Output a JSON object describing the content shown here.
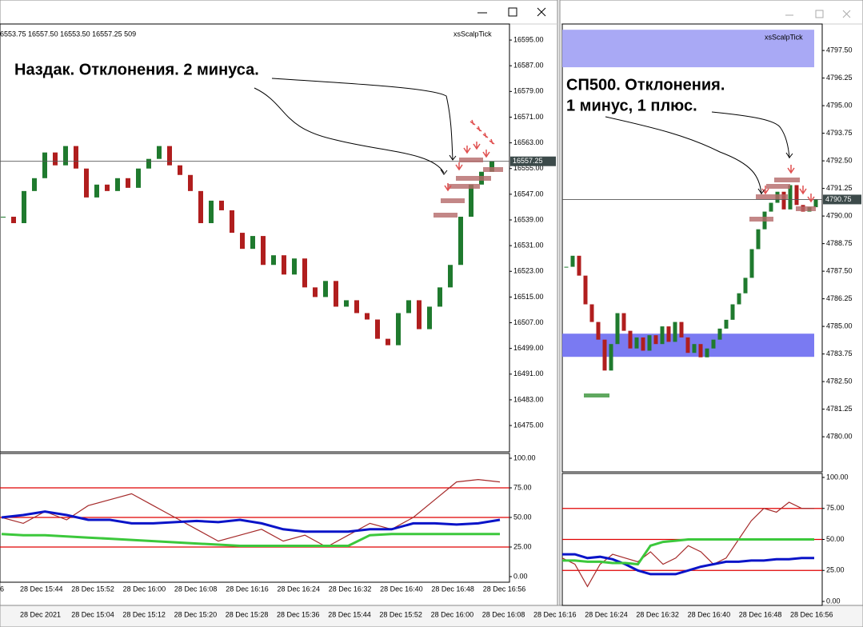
{
  "chart_data": [
    {
      "type": "candlestick",
      "info": "6553.75 16557.50 16553.50 16557.25 509",
      "indicator": "xsScalpTick",
      "annotation": [
        "Наздак. Отклонения. 2 минуса."
      ],
      "close": [
        16540,
        16538,
        16548,
        16552,
        16560,
        16556,
        16562,
        16555,
        16546,
        16550,
        16548,
        16552,
        16549,
        16555,
        16558,
        16562,
        16556,
        16553,
        16548,
        16538,
        16545,
        16542,
        16535,
        16530,
        16534,
        16525,
        16528,
        16522,
        16527,
        16518,
        16515,
        16520,
        16512,
        16514,
        16510,
        16508,
        16502,
        16500,
        16510,
        16514,
        16505,
        16512,
        16518,
        16525,
        16540,
        16550,
        16554,
        16557.25
      ],
      "up_color": "#1f7a2e",
      "down_color": "#b01e1e",
      "current_price": 16557.25,
      "ylim": [
        16466.8,
        16600
      ],
      "yticks": [
        {
          "value": 16595,
          "label": "16595.00"
        },
        {
          "value": 16587,
          "label": "16587.00"
        },
        {
          "value": 16579,
          "label": "16579.00"
        },
        {
          "value": 16571,
          "label": "16571.00"
        },
        {
          "value": 16563,
          "label": "16563.00"
        },
        {
          "value": 16555,
          "label": "16555.00"
        },
        {
          "value": 16547,
          "label": "16547.00"
        },
        {
          "value": 16539,
          "label": "16539.00"
        },
        {
          "value": 16531,
          "label": "16531.00"
        },
        {
          "value": 16523,
          "label": "16523.00"
        },
        {
          "value": 16515,
          "label": "16515.00"
        },
        {
          "value": 16507,
          "label": "16507.00"
        },
        {
          "value": 16499,
          "label": "16499.00"
        },
        {
          "value": 16491,
          "label": "16491.00"
        },
        {
          "value": 16483,
          "label": "16483.00"
        },
        {
          "value": 16475,
          "label": "16475.00"
        }
      ],
      "time_labels": [
        "6",
        "28 Dec 15:44",
        "28 Dec 15:52",
        "28 Dec 16:00",
        "28 Dec 16:08",
        "28 Dec 16:16",
        "28 Dec 16:24",
        "28 Dec 16:32",
        "28 Dec 16:40",
        "28 Dec 16:48",
        "28 Dec 16:56"
      ],
      "oscillator": {
        "ylim": [
          -4.73,
          104.05
        ],
        "yticks": [
          {
            "value": 100,
            "label": "100.00"
          },
          {
            "value": 75,
            "label": "75.00"
          },
          {
            "value": 50,
            "label": "50.00"
          },
          {
            "value": 25,
            "label": "25.00"
          },
          {
            "value": 0,
            "label": "0.00"
          }
        ],
        "levels": [
          75,
          50,
          25
        ],
        "level_color": "#e00000",
        "series": [
          {
            "color": "#a52a2a",
            "values": [
              50,
              45,
              55,
              48,
              60,
              65,
              70,
              60,
              50,
              40,
              30,
              35,
              40,
              30,
              35,
              25,
              35,
              45,
              40,
              50,
              65,
              80,
              82,
              80
            ]
          },
          {
            "color": "#0a14c8",
            "values": [
              50,
              52,
              55,
              52,
              48,
              48,
              45,
              45,
              46,
              47,
              46,
              48,
              45,
              40,
              38,
              38,
              38,
              40,
              40,
              45,
              45,
              44,
              45,
              48
            ]
          },
          {
            "color": "#3cc83c",
            "values": [
              36,
              35,
              35,
              34,
              33,
              32,
              31,
              30,
              29,
              28,
              27,
              26,
              26,
              26,
              26,
              26,
              26,
              35,
              36,
              36,
              36,
              36,
              36,
              36
            ]
          }
        ]
      }
    },
    {
      "type": "candlestick",
      "indicator": "xsScalpTick",
      "annotation": [
        "СП500. Отклонения.",
        "1 минус, 1 плюс."
      ],
      "close": [
        4787.7,
        4788.2,
        4787.3,
        4786,
        4785.2,
        4784.4,
        4783,
        4784.2,
        4785.6,
        4784.8,
        4784,
        4784.5,
        4783.9,
        4784.6,
        4784.2,
        4785,
        4784.3,
        4785.2,
        4784.5,
        4783.8,
        4784.2,
        4783.6,
        4784,
        4784.4,
        4784.9,
        4785.3,
        4786,
        4786.5,
        4787.2,
        4788.5,
        4789.4,
        4790.2,
        4790.6,
        4791.1,
        4790.3,
        4791.4,
        4790.5,
        4790.2,
        4790.4,
        4790.75
      ],
      "up_color": "#1f7a2e",
      "down_color": "#b01e1e",
      "current_price": 4790.75,
      "ylim": [
        4778.41,
        4798.7
      ],
      "yticks": [
        {
          "value": 4797.5,
          "label": "4797.50"
        },
        {
          "value": 4796.25,
          "label": "4796.25"
        },
        {
          "value": 4795,
          "label": "4795.00"
        },
        {
          "value": 4793.75,
          "label": "4793.75"
        },
        {
          "value": 4792.5,
          "label": "4792.50"
        },
        {
          "value": 4791.25,
          "label": "4791.25"
        },
        {
          "value": 4790,
          "label": "4790.00"
        },
        {
          "value": 4788.75,
          "label": "4788.75"
        },
        {
          "value": 4787.5,
          "label": "4787.50"
        },
        {
          "value": 4786.25,
          "label": "4786.25"
        },
        {
          "value": 4785,
          "label": "4785.00"
        },
        {
          "value": 4783.75,
          "label": "4783.75"
        },
        {
          "value": 4782.5,
          "label": "4782.50"
        },
        {
          "value": 4781.25,
          "label": "4781.25"
        },
        {
          "value": 4780,
          "label": "4780.00"
        }
      ],
      "zones": [
        {
          "range": [
            4796.74,
            4798.44
          ],
          "color": "#a9a9f5"
        },
        {
          "range": [
            4783.62,
            4784.67
          ],
          "color": "#7a7af2"
        }
      ],
      "oscillator": {
        "ylim": [
          -3.2,
          103.2
        ],
        "yticks": [
          {
            "value": 100,
            "label": "100.00"
          },
          {
            "value": 75,
            "label": "75.00"
          },
          {
            "value": 50,
            "label": "50.00"
          },
          {
            "value": 25,
            "label": "25.00"
          },
          {
            "value": 0,
            "label": "0.00"
          }
        ],
        "levels": [
          75,
          50,
          25
        ],
        "level_color": "#e00000",
        "series": [
          {
            "color": "#a52a2a",
            "values": [
              35,
              30,
              12,
              30,
              38,
              35,
              32,
              40,
              30,
              35,
              45,
              40,
              30,
              35,
              50,
              65,
              75,
              72,
              80,
              75,
              75
            ]
          },
          {
            "color": "#0a14c8",
            "values": [
              38,
              38,
              35,
              36,
              34,
              30,
              25,
              22,
              22,
              22,
              25,
              28,
              30,
              32,
              32,
              33,
              33,
              34,
              34,
              35,
              35
            ]
          },
          {
            "color": "#3cc83c",
            "values": [
              33,
              33,
              32,
              32,
              31,
              31,
              30,
              45,
              48,
              49,
              50,
              50,
              50,
              50,
              50,
              50,
              50,
              50,
              50,
              50,
              50
            ]
          }
        ]
      }
    }
  ],
  "background_window": {
    "time_labels": [
      "28 Dec 2021",
      "28 Dec 15:04",
      "28 Dec 15:12",
      "28 Dec 15:20",
      "28 Dec 15:28",
      "28 Dec 15:36",
      "28 Dec 15:44",
      "28 Dec 15:52",
      "28 Dec 16:00",
      "28 Dec 16:08",
      "28 Dec 16:16",
      "28 Dec 16:24",
      "28 Dec 16:32",
      "28 Dec 16:40",
      "28 Dec 16:48",
      "28 Dec 16:56"
    ]
  }
}
